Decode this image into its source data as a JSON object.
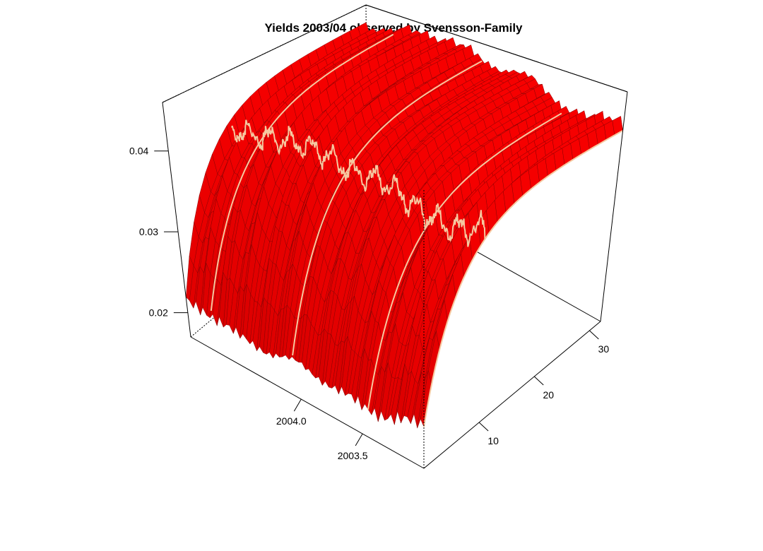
{
  "chart_data": {
    "type": "surface3d",
    "title": "Yields 2003/04 observed by Svensson-Family",
    "xlabel": "",
    "ylabel": "",
    "zlabel": "",
    "axes": {
      "time": {
        "range": [
          2003.0,
          2004.9
        ],
        "ticks": [
          2003.5,
          2004.0
        ],
        "tick_labels": [
          "2003.5",
          "2004.0"
        ]
      },
      "maturity": {
        "range": [
          0,
          32
        ],
        "ticks": [
          10,
          20,
          30
        ],
        "tick_labels": [
          "10",
          "20",
          "30"
        ]
      },
      "yield": {
        "range": [
          0.017,
          0.046
        ],
        "ticks": [
          0.02,
          0.03,
          0.04
        ],
        "tick_labels": [
          "0.02",
          "0.03",
          "0.04"
        ]
      }
    },
    "surface_color": "#ff0000",
    "mesh_color": "#7a0000",
    "highlight_color": "#f5c8a0",
    "short_rate_by_time": [
      [
        2003.0,
        0.0215
      ],
      [
        2003.25,
        0.0205
      ],
      [
        2003.5,
        0.02
      ],
      [
        2003.75,
        0.0205
      ],
      [
        2004.0,
        0.021
      ],
      [
        2004.25,
        0.0205
      ],
      [
        2004.5,
        0.0205
      ],
      [
        2004.75,
        0.0215
      ],
      [
        2004.9,
        0.0215
      ]
    ],
    "long_rate_by_time": [
      [
        2003.0,
        0.0425
      ],
      [
        2003.25,
        0.041
      ],
      [
        2003.5,
        0.042
      ],
      [
        2003.75,
        0.044
      ],
      [
        2004.0,
        0.0435
      ],
      [
        2004.25,
        0.045
      ],
      [
        2004.5,
        0.0445
      ],
      [
        2004.75,
        0.043
      ],
      [
        2004.9,
        0.0428
      ]
    ],
    "highlighted_curves_at_time": [
      2003.0,
      2003.45,
      2004.05,
      2004.7
    ],
    "highlighted_maturity": 10
  }
}
